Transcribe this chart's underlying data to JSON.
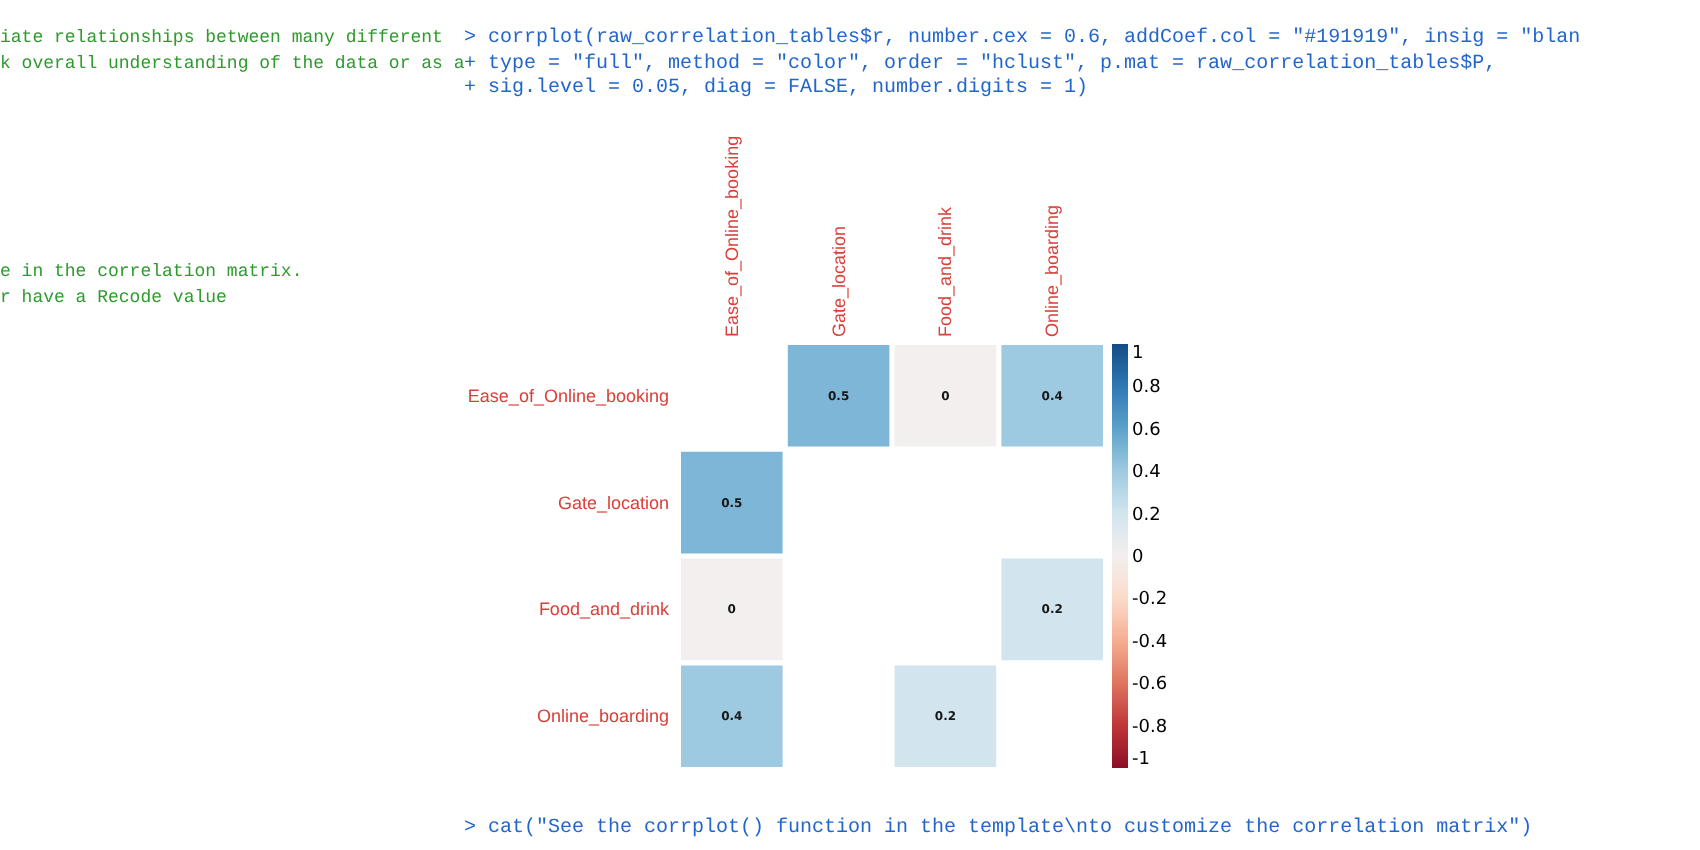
{
  "chart_data": {
    "type": "heatmap",
    "categories": [
      "Ease_of_Online_booking",
      "Gate_location",
      "Food_and_drink",
      "Online_boarding"
    ],
    "y_categories": [
      "Ease_of_Online_booking",
      "Gate_location",
      "Food_and_drink",
      "Online_boarding"
    ],
    "cells": [
      [
        null,
        0.5,
        0,
        0.4
      ],
      [
        0.5,
        null,
        null,
        null
      ],
      [
        0,
        null,
        null,
        0.2
      ],
      [
        0.4,
        null,
        0.2,
        null
      ]
    ],
    "data_labels": true,
    "clim": [
      -1,
      1
    ],
    "cticks": [
      -1,
      -0.8,
      -0.6,
      -0.4,
      -0.2,
      0,
      0.2,
      0.4,
      0.6,
      0.8,
      1
    ],
    "annotations": [
      "iate relationships between many different",
      "k overall understanding of the data or as a",
      "e in the correlation matrix.",
      "r have a Recode value",
      "> corrplot(raw_correlation_tables$r, number.cex = 0.6, addCoef.col = \"#191919\", insig = \"blan",
      "+     type = \"full\", method = \"color\", order = \"hclust\", p.mat = raw_correlation_tables$P,",
      "+     sig.level = 0.05, diag = FALSE, number.digits = 1)",
      "> cat(\"See the corrplot() function in the template\\nto customize the correlation matrix\")"
    ]
  }
}
